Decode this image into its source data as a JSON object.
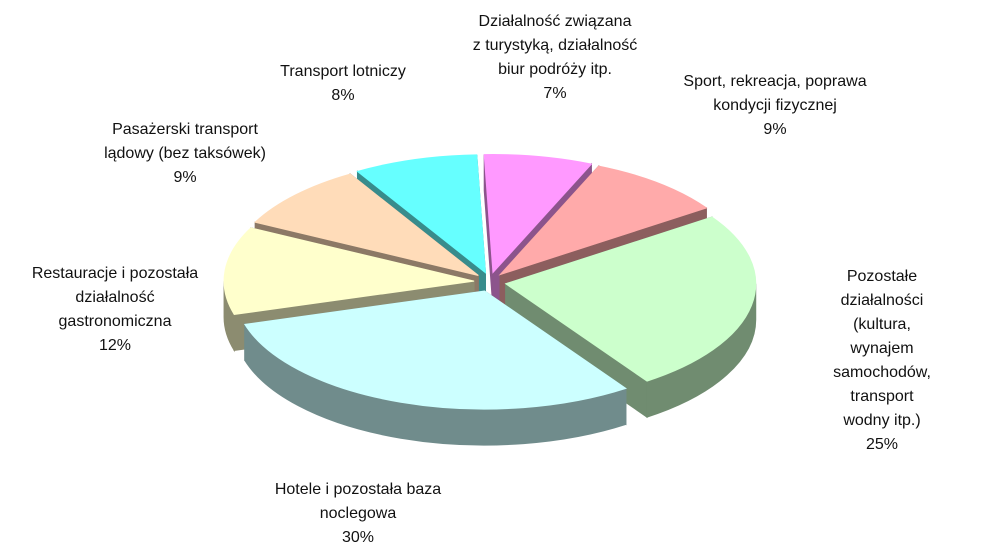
{
  "chart_data": {
    "type": "pie3d",
    "categories": [
      "Działalność związana\nz turystyką, działalność\nbiur podróży itp.",
      "Sport, rekreacja, poprawa\nkondycji fizycznej",
      "Pozostałe działalności\n(kultura, wynajem\nsamochodów, transport\nwodny itp.)",
      "Hotele i pozostała baza\nnoclegowa",
      "Restauracje i pozostała\ndziałalność\ngastronomiczna",
      "Pasażerski transport\nlądowy (bez taksówek)",
      "Transport lotniczy"
    ],
    "values": [
      7,
      9,
      25,
      30,
      12,
      9,
      8
    ],
    "value_labels": [
      "7%",
      "9%",
      "25%",
      "30%",
      "12%",
      "9%",
      "8%"
    ],
    "colors": [
      "#ff99ff",
      "#ffaaaa",
      "#ccffcc",
      "#ccffff",
      "#ffffcc",
      "#ffdcb9",
      "#66ffff"
    ]
  }
}
